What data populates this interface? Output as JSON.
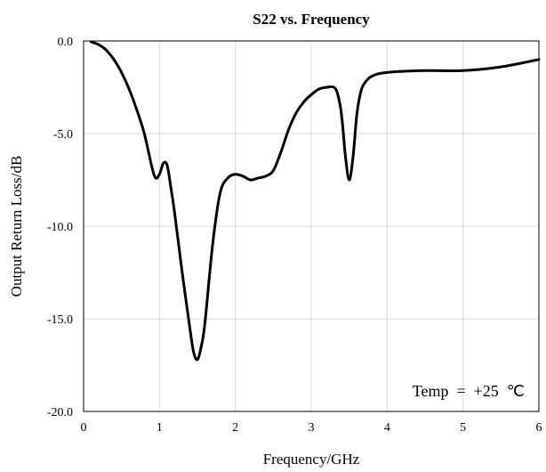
{
  "chart_data": {
    "type": "line",
    "title": "S22 vs. Frequency",
    "xlabel": "Frequency/GHz",
    "ylabel": "Output Return Loss/dB",
    "xlim": [
      0,
      6
    ],
    "ylim": [
      -20,
      0
    ],
    "x_ticks": [
      0,
      1,
      2,
      3,
      4,
      5,
      6
    ],
    "x_tick_labels": [
      "0",
      "1",
      "2",
      "3",
      "4",
      "5",
      "6"
    ],
    "y_ticks": [
      0,
      -5,
      -10,
      -15,
      -20
    ],
    "y_tick_labels": [
      "0.0",
      "-5.0",
      "-10.0",
      "-15.0",
      "-20.0"
    ],
    "grid": true,
    "annotation": "Temp = +25 ℃",
    "series": [
      {
        "x": [
          0.1,
          0.2,
          0.3,
          0.4,
          0.5,
          0.6,
          0.7,
          0.8,
          0.9,
          0.95,
          1.0,
          1.05,
          1.1,
          1.15,
          1.2,
          1.3,
          1.4,
          1.45,
          1.5,
          1.55,
          1.6,
          1.7,
          1.8,
          1.9,
          2.0,
          2.1,
          2.2,
          2.3,
          2.4,
          2.5,
          2.6,
          2.7,
          2.8,
          2.9,
          3.0,
          3.1,
          3.2,
          3.3,
          3.35,
          3.4,
          3.45,
          3.5,
          3.55,
          3.6,
          3.65,
          3.7,
          3.8,
          4.0,
          4.5,
          5.0,
          5.5,
          6.0
        ],
        "y": [
          -0.05,
          -0.2,
          -0.5,
          -1.0,
          -1.7,
          -2.6,
          -3.7,
          -5.0,
          -6.8,
          -7.4,
          -7.2,
          -6.6,
          -6.7,
          -7.9,
          -9.3,
          -12.5,
          -15.5,
          -16.8,
          -17.2,
          -16.5,
          -15.2,
          -11.0,
          -8.2,
          -7.4,
          -7.2,
          -7.3,
          -7.5,
          -7.4,
          -7.3,
          -7.0,
          -6.0,
          -4.8,
          -3.9,
          -3.3,
          -2.9,
          -2.6,
          -2.5,
          -2.5,
          -2.9,
          -4.0,
          -6.2,
          -7.5,
          -6.3,
          -4.0,
          -2.8,
          -2.3,
          -1.9,
          -1.7,
          -1.6,
          -1.6,
          -1.4,
          -1.0
        ]
      }
    ]
  }
}
